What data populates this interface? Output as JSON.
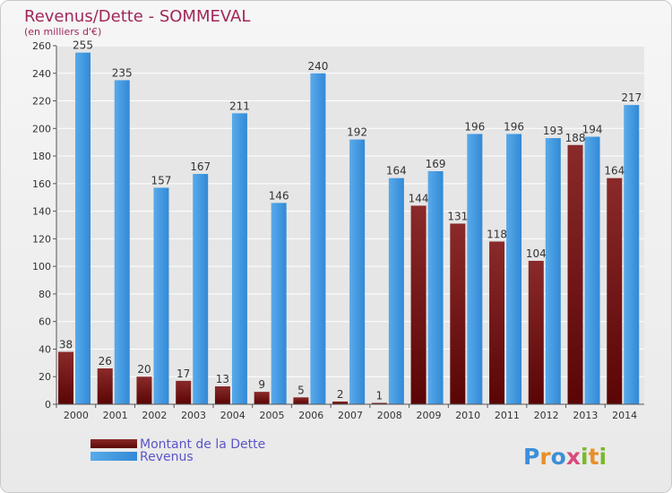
{
  "chart_data": {
    "type": "bar",
    "title": "Revenus/Dette - SOMMEVAL",
    "subtitle": "(en milliers d'€)",
    "categories": [
      "2000",
      "2001",
      "2002",
      "2003",
      "2004",
      "2005",
      "2006",
      "2007",
      "2008",
      "2009",
      "2010",
      "2011",
      "2012",
      "2013",
      "2014"
    ],
    "series": [
      {
        "name": "Montant de la Dette",
        "color": "#7a1a1a",
        "values": [
          38,
          26,
          20,
          17,
          13,
          9,
          5,
          2,
          1,
          144,
          131,
          118,
          104,
          188,
          164
        ]
      },
      {
        "name": "Revenus",
        "color": "#3b9ae1",
        "values": [
          255,
          235,
          157,
          167,
          211,
          146,
          240,
          192,
          164,
          169,
          196,
          196,
          193,
          194,
          217
        ]
      }
    ],
    "ylim": [
      0,
      260
    ],
    "yticks": [
      0,
      20,
      40,
      60,
      80,
      100,
      120,
      140,
      160,
      180,
      200,
      220,
      240,
      260
    ],
    "grid": true,
    "legend": "bottom-left"
  },
  "colors": {
    "title": "#a0275a",
    "legend_text": "#5a55c8",
    "axis_text": "#333333",
    "grid": "#ffffff"
  },
  "brand": {
    "text": "Proxiti",
    "letters": [
      "P",
      "r",
      "o",
      "x",
      "i",
      "t",
      "i"
    ],
    "letter_colors": [
      "#3c8fd8",
      "#e8902a",
      "#3c8fd8",
      "#d94a7a",
      "#7ab82e",
      "#e8902a",
      "#7ab82e"
    ]
  }
}
